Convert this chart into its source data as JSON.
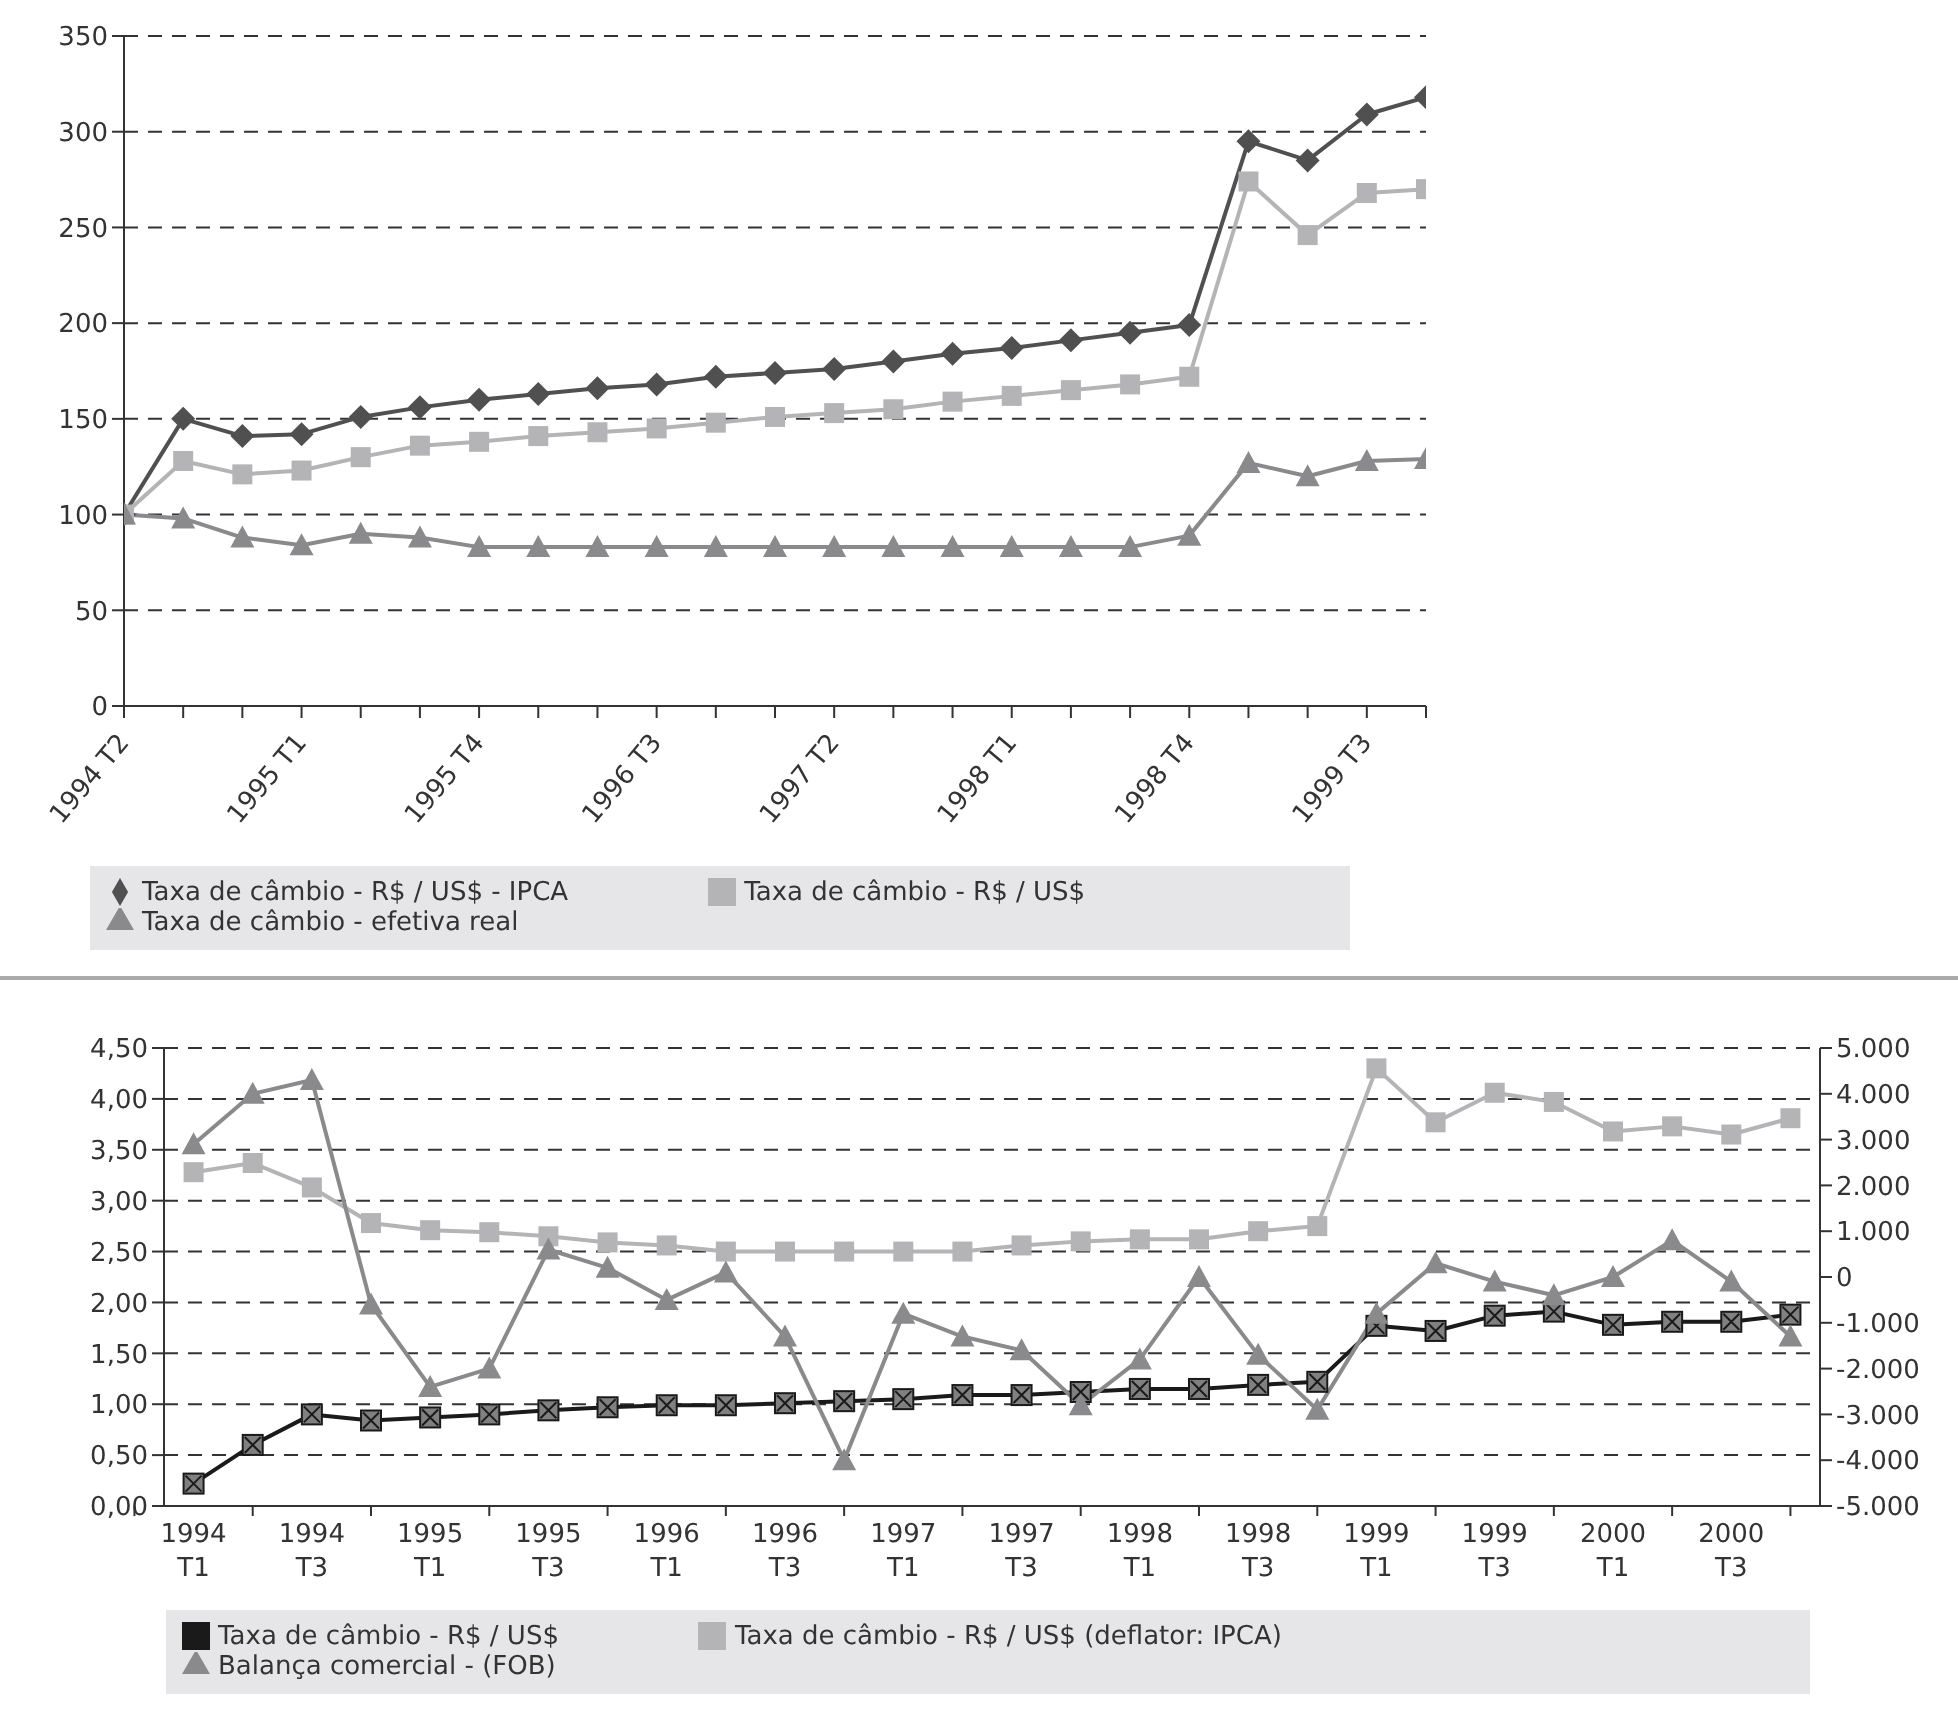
{
  "chart_data": [
    {
      "type": "line",
      "categories": [
        "1994 T2",
        null,
        null,
        "1995 T1",
        null,
        null,
        "1995 T4",
        null,
        null,
        "1996 T3",
        null,
        null,
        "1997 T2",
        null,
        null,
        "1998 T1",
        null,
        null,
        "1998 T4",
        null,
        null,
        "1999 T3",
        null
      ],
      "ylim": [
        0,
        350
      ],
      "yticks": [
        0,
        50,
        100,
        150,
        200,
        250,
        300,
        350
      ],
      "grid": "y",
      "legend": "bottom",
      "series": [
        {
          "name": "Taxa de câmbio - R$ / US$ - IPCA",
          "color": "#505050",
          "marker": "diamond",
          "values": [
            100,
            150,
            141,
            142,
            151,
            156,
            160,
            163,
            166,
            168,
            172,
            174,
            176,
            180,
            184,
            187,
            191,
            195,
            199,
            295,
            285,
            309,
            318
          ]
        },
        {
          "name": "Taxa de câmbio - R$ / US$",
          "color": "#b4b4b6",
          "marker": "square",
          "values": [
            100,
            128,
            121,
            123,
            130,
            136,
            138,
            141,
            143,
            145,
            148,
            151,
            153,
            155,
            159,
            162,
            165,
            168,
            172,
            274,
            246,
            268,
            270
          ]
        },
        {
          "name": "Taxa de câmbio - efetiva real",
          "color": "#8a8a8c",
          "marker": "triangle",
          "values": [
            100,
            98,
            88,
            84,
            90,
            88,
            83,
            83,
            83,
            83,
            83,
            83,
            83,
            83,
            83,
            83,
            83,
            83,
            89,
            127,
            120,
            128,
            129
          ]
        }
      ]
    },
    {
      "type": "line",
      "categories": [
        "1994 T1",
        null,
        "1994 T3",
        null,
        "1995 T1",
        null,
        "1995 T3",
        null,
        "1996 T1",
        null,
        "1996 T3",
        null,
        "1997 T1",
        null,
        "1997 T3",
        null,
        "1998 T1",
        null,
        "1998 T3",
        null,
        "1999 T1",
        null,
        "1999 T3",
        null,
        "2000 T1",
        null,
        "2000 T3",
        null
      ],
      "ylim": [
        0,
        4.5
      ],
      "yticks": [
        {
          "value": 0,
          "label": "0,00"
        },
        {
          "value": 0.5,
          "label": "0,50"
        },
        {
          "value": 1,
          "label": "1,00"
        },
        {
          "value": 1.5,
          "label": "1,50"
        },
        {
          "value": 2,
          "label": "2,00"
        },
        {
          "value": 2.5,
          "label": "2,50"
        },
        {
          "value": 3,
          "label": "3,00"
        },
        {
          "value": 3.5,
          "label": "3,50"
        },
        {
          "value": 4,
          "label": "4,00"
        },
        {
          "value": 4.5,
          "label": "4,50"
        }
      ],
      "y2lim": [
        -5000,
        5000
      ],
      "y2ticks": [
        {
          "value": -5000,
          "label": "-5.000"
        },
        {
          "value": -4000,
          "label": "-4.000"
        },
        {
          "value": -3000,
          "label": "-3.000"
        },
        {
          "value": -2000,
          "label": "-2.000"
        },
        {
          "value": -1000,
          "label": "-1.000"
        },
        0,
        {
          "value": 1000,
          "label": "1.000"
        },
        {
          "value": 2000,
          "label": "2.000"
        },
        {
          "value": 3000,
          "label": "3.000"
        },
        {
          "value": 4000,
          "label": "4.000"
        },
        {
          "value": 5000,
          "label": "5.000"
        }
      ],
      "grid": "y",
      "legend": "bottom",
      "series": [
        {
          "name": "Taxa de câmbio - R$ / US$",
          "color": "#1a1a1a",
          "marker": "square",
          "values": [
            0.22,
            0.6,
            0.9,
            0.84,
            0.87,
            0.9,
            0.94,
            0.97,
            0.99,
            0.99,
            1.01,
            1.03,
            1.05,
            1.09,
            1.09,
            1.12,
            1.15,
            1.15,
            1.19,
            1.22,
            1.77,
            1.72,
            1.87,
            1.91,
            1.78,
            1.81,
            1.81,
            1.88
          ]
        },
        {
          "name": "Taxa de câmbio - R$ / US$ (deflator: IPCA)",
          "color": "#b4b4b6",
          "marker": "square",
          "values": [
            3.28,
            3.37,
            3.13,
            2.78,
            2.71,
            2.69,
            2.65,
            2.59,
            2.56,
            2.5,
            2.5,
            2.5,
            2.5,
            2.5,
            2.56,
            2.6,
            2.62,
            2.62,
            2.7,
            2.75,
            4.3,
            3.77,
            4.06,
            3.97,
            3.68,
            3.73,
            3.65,
            3.81
          ]
        },
        {
          "name": "Balança comercial - (FOB)",
          "color": "#8a8a8c",
          "marker": "triangle",
          "axis": "y2",
          "values": [
            2900,
            4000,
            4300,
            -600,
            -2400,
            -2000,
            600,
            200,
            -500,
            100,
            -1300,
            -4000,
            -800,
            -1300,
            -1600,
            -2800,
            -1800,
            0,
            -1700,
            -2900,
            -800,
            300,
            -100,
            -400,
            0,
            800,
            -100,
            -1300
          ]
        }
      ]
    }
  ]
}
